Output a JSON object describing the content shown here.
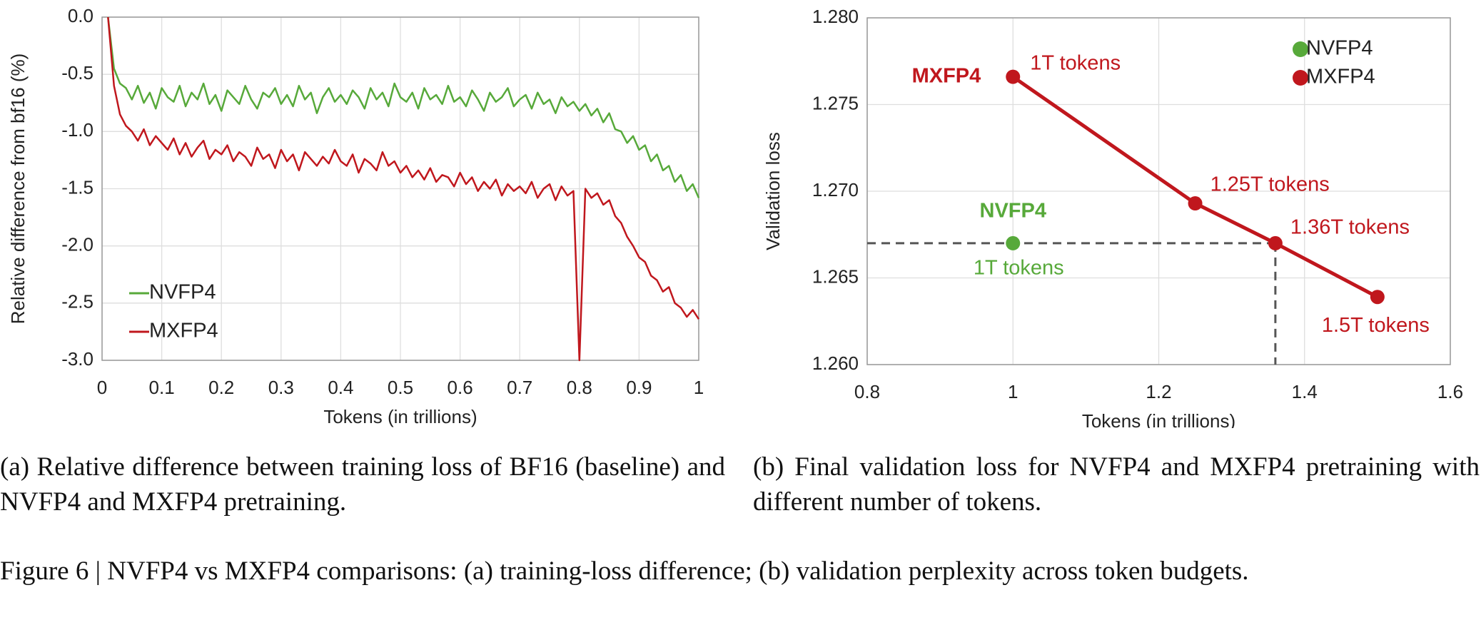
{
  "chart_data": [
    {
      "type": "line",
      "x_label": "Tokens (in trillions)",
      "y_label": "Relative difference from bf16 (%)",
      "x": [
        0.01,
        0.02,
        0.03,
        0.04,
        0.05,
        0.06,
        0.07,
        0.08,
        0.09,
        0.1,
        0.11,
        0.12,
        0.13,
        0.14,
        0.15,
        0.16,
        0.17,
        0.18,
        0.19,
        0.2,
        0.21,
        0.22,
        0.23,
        0.24,
        0.25,
        0.26,
        0.27,
        0.28,
        0.29,
        0.3,
        0.31,
        0.32,
        0.33,
        0.34,
        0.35,
        0.36,
        0.37,
        0.38,
        0.39,
        0.4,
        0.41,
        0.42,
        0.43,
        0.44,
        0.45,
        0.46,
        0.47,
        0.48,
        0.49,
        0.5,
        0.51,
        0.52,
        0.53,
        0.54,
        0.55,
        0.56,
        0.57,
        0.58,
        0.59,
        0.6,
        0.61,
        0.62,
        0.63,
        0.64,
        0.65,
        0.66,
        0.67,
        0.68,
        0.69,
        0.7,
        0.71,
        0.72,
        0.73,
        0.74,
        0.75,
        0.76,
        0.77,
        0.78,
        0.79,
        0.8,
        0.81,
        0.82,
        0.83,
        0.84,
        0.85,
        0.86,
        0.87,
        0.88,
        0.89,
        0.9,
        0.91,
        0.92,
        0.93,
        0.94,
        0.95,
        0.96,
        0.97,
        0.98,
        0.99,
        1
      ],
      "series": [
        {
          "name": "NVFP4",
          "color": "#57a93a",
          "values": [
            0,
            -0.45,
            -0.58,
            -0.62,
            -0.72,
            -0.6,
            -0.75,
            -0.66,
            -0.8,
            -0.62,
            -0.7,
            -0.74,
            -0.6,
            -0.78,
            -0.66,
            -0.72,
            -0.58,
            -0.76,
            -0.68,
            -0.82,
            -0.64,
            -0.7,
            -0.76,
            -0.6,
            -0.72,
            -0.8,
            -0.66,
            -0.7,
            -0.62,
            -0.76,
            -0.68,
            -0.78,
            -0.6,
            -0.72,
            -0.66,
            -0.84,
            -0.7,
            -0.62,
            -0.74,
            -0.68,
            -0.76,
            -0.64,
            -0.7,
            -0.8,
            -0.62,
            -0.72,
            -0.66,
            -0.78,
            -0.58,
            -0.7,
            -0.74,
            -0.66,
            -0.8,
            -0.62,
            -0.72,
            -0.68,
            -0.76,
            -0.6,
            -0.74,
            -0.7,
            -0.78,
            -0.64,
            -0.72,
            -0.82,
            -0.66,
            -0.74,
            -0.7,
            -0.62,
            -0.78,
            -0.72,
            -0.68,
            -0.8,
            -0.66,
            -0.76,
            -0.72,
            -0.84,
            -0.7,
            -0.78,
            -0.74,
            -0.82,
            -0.76,
            -0.86,
            -0.8,
            -0.92,
            -0.84,
            -0.98,
            -1.0,
            -1.1,
            -1.04,
            -1.16,
            -1.12,
            -1.26,
            -1.2,
            -1.34,
            -1.3,
            -1.44,
            -1.38,
            -1.52,
            -1.46,
            -1.58
          ]
        },
        {
          "name": "MXFP4",
          "color": "#c0171d",
          "values": [
            0,
            -0.6,
            -0.85,
            -0.95,
            -1.0,
            -1.08,
            -0.98,
            -1.12,
            -1.04,
            -1.1,
            -1.16,
            -1.06,
            -1.2,
            -1.1,
            -1.22,
            -1.14,
            -1.08,
            -1.24,
            -1.16,
            -1.2,
            -1.12,
            -1.26,
            -1.18,
            -1.22,
            -1.3,
            -1.14,
            -1.24,
            -1.2,
            -1.32,
            -1.16,
            -1.26,
            -1.2,
            -1.34,
            -1.18,
            -1.24,
            -1.3,
            -1.22,
            -1.28,
            -1.16,
            -1.26,
            -1.3,
            -1.2,
            -1.36,
            -1.24,
            -1.28,
            -1.34,
            -1.18,
            -1.3,
            -1.26,
            -1.36,
            -1.3,
            -1.4,
            -1.34,
            -1.42,
            -1.32,
            -1.44,
            -1.38,
            -1.4,
            -1.48,
            -1.36,
            -1.46,
            -1.4,
            -1.52,
            -1.44,
            -1.5,
            -1.42,
            -1.56,
            -1.46,
            -1.52,
            -1.48,
            -1.54,
            -1.44,
            -1.58,
            -1.5,
            -1.46,
            -1.6,
            -1.48,
            -1.56,
            -1.52,
            -3.0,
            -1.5,
            -1.58,
            -1.54,
            -1.64,
            -1.6,
            -1.74,
            -1.8,
            -1.92,
            -2.0,
            -2.1,
            -2.14,
            -2.26,
            -2.3,
            -2.4,
            -2.36,
            -2.5,
            -2.54,
            -2.62,
            -2.56,
            -2.64
          ]
        }
      ],
      "xlim": [
        0,
        1
      ],
      "xticks": [
        0,
        0.1,
        0.2,
        0.3,
        0.4,
        0.5,
        0.6,
        0.7,
        0.8,
        0.9,
        1
      ],
      "ylim": [
        -3,
        0
      ],
      "yticks": [
        {
          "value": 0,
          "label": "0.0"
        },
        -0.5,
        {
          "value": -1,
          "label": "-1.0"
        },
        -1.5,
        {
          "value": -2,
          "label": "-2.0"
        },
        -2.5,
        {
          "value": -3,
          "label": "-3.0"
        }
      ],
      "grid": true,
      "legend": "lower left",
      "markers": false
    },
    {
      "type": "line",
      "x_label": "Tokens (in trillions)",
      "y_label": "Validation loss",
      "series": [
        {
          "name": "NVFP4",
          "color": "#57a93a",
          "x": [
            1
          ],
          "values": [
            1.267
          ],
          "point_labels": [
            "1T tokens"
          ]
        },
        {
          "name": "MXFP4",
          "color": "#c0171d",
          "x": [
            1,
            1.25,
            1.36,
            1.5
          ],
          "values": [
            1.2766,
            1.2693,
            1.267,
            1.2639
          ],
          "point_labels": [
            "1T tokens",
            "1.25T tokens",
            "1.36T tokens",
            "1.5T tokens"
          ]
        }
      ],
      "xlim": [
        0.8,
        1.6
      ],
      "xticks": [
        0.8,
        1,
        1.2,
        1.4,
        1.6
      ],
      "ylim": [
        1.26,
        1.28
      ],
      "yticks": [
        {
          "value": 1.26,
          "label": "1.260"
        },
        1.265,
        {
          "value": 1.27,
          "label": "1.270"
        },
        1.275,
        {
          "value": 1.28,
          "label": "1.280"
        }
      ],
      "grid": true,
      "legend": "upper right",
      "markers": true
    }
  ],
  "subcaptions": [
    "(a) Relative difference between training loss of BF16 (baseline) and NVFP4 and MXFP4 pretraining.",
    "(b) Final validation loss for NVFP4 and MXFP4 pretraining with different number of tokens."
  ],
  "figure_caption": "Figure 6 | NVFP4 vs MXFP4 comparisons: (a) training-loss difference; (b) validation perplexity across token budgets."
}
